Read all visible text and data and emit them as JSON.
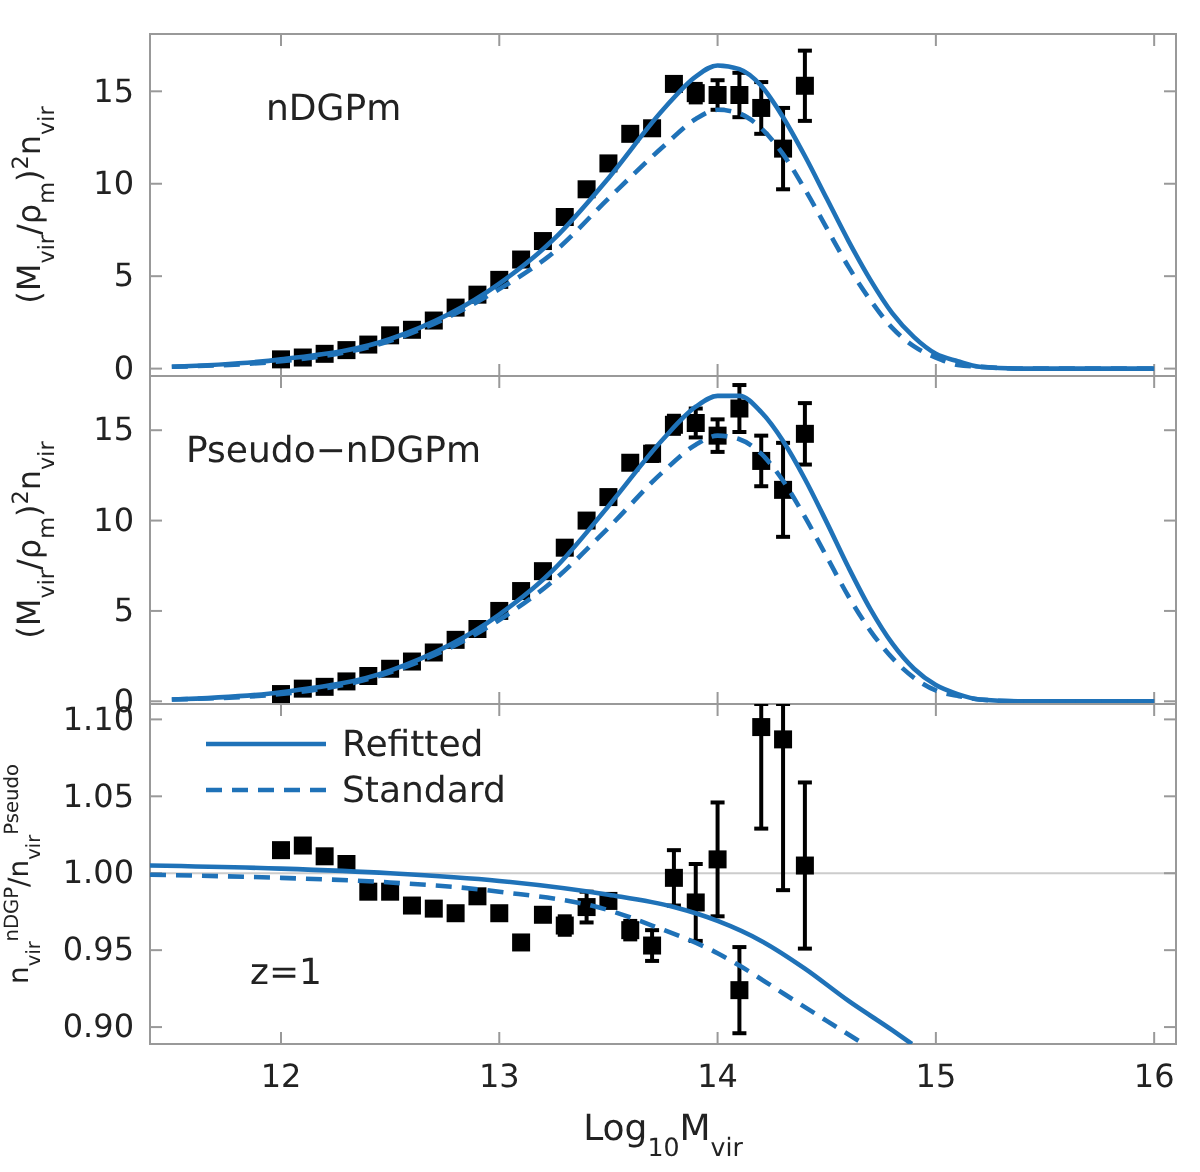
{
  "chart_data": [
    {
      "type": "scatter",
      "ylabel": "(M$_{vir}$/ρ$_{m}$)$^{2}$n$_{vir}$",
      "annotations": [
        "nDGPm"
      ],
      "xlim": [
        11.4,
        16.1
      ],
      "ylim": [
        -0.4,
        18.1
      ],
      "xticks": [
        12,
        13,
        14,
        15,
        16
      ],
      "yticks": [
        0,
        5,
        10,
        15
      ],
      "tick_labels": "y",
      "legend": false,
      "series": [
        {
          "color": "#000000",
          "marker": "square",
          "x": [
            12.0,
            12.1,
            12.2,
            12.3,
            12.4,
            12.5,
            12.6,
            12.7,
            12.8,
            12.9,
            13.0,
            13.1,
            13.2,
            13.3,
            13.4,
            13.5,
            13.6,
            13.7,
            13.8,
            13.9,
            14.0,
            14.1,
            14.2,
            14.3,
            14.4
          ],
          "values": [
            0.5,
            0.6,
            0.8,
            1.0,
            1.3,
            1.8,
            2.1,
            2.6,
            3.3,
            4.0,
            4.8,
            5.9,
            6.9,
            8.2,
            9.7,
            11.1,
            12.7,
            13.0,
            15.4,
            14.9,
            14.8,
            14.8,
            14.1,
            11.9,
            15.3
          ],
          "errors": [
            null,
            null,
            null,
            null,
            null,
            null,
            null,
            null,
            null,
            null,
            null,
            null,
            null,
            null,
            null,
            null,
            0.2,
            0.3,
            0.3,
            0.5,
            0.8,
            1.2,
            1.4,
            2.2,
            1.9
          ]
        },
        {
          "type": "line",
          "color": "#1f72b8",
          "marker": "none",
          "line_style": "solid",
          "x": [
            11.5,
            12,
            12.5,
            13,
            13.25,
            13.5,
            13.75,
            13.9,
            14.0,
            14.1,
            14.2,
            14.3,
            14.4,
            14.5,
            14.6,
            14.7,
            14.8,
            14.9,
            15.0,
            15.1,
            15.2,
            15.4,
            16
          ],
          "values": [
            0.1,
            0.5,
            1.6,
            4.6,
            7.0,
            10.3,
            14.0,
            15.8,
            16.4,
            16.2,
            15.3,
            13.6,
            11.5,
            9.2,
            6.9,
            4.8,
            3.0,
            1.7,
            0.8,
            0.4,
            0.1,
            0,
            0
          ]
        },
        {
          "type": "line",
          "color": "#1f72b8",
          "marker": "none",
          "line_style": "dashed",
          "x": [
            11.5,
            12,
            12.5,
            13,
            13.25,
            13.5,
            13.75,
            13.9,
            14.0,
            14.1,
            14.2,
            14.3,
            14.4,
            14.5,
            14.6,
            14.7,
            14.8,
            14.9,
            15.0,
            15.1,
            15.2,
            15.4,
            16
          ],
          "values": [
            0.1,
            0.4,
            1.5,
            4.3,
            6.3,
            9.2,
            12.0,
            13.5,
            14.0,
            13.8,
            13.0,
            11.6,
            9.7,
            7.6,
            5.5,
            3.7,
            2.2,
            1.2,
            0.6,
            0.2,
            0.1,
            0,
            0
          ]
        }
      ]
    },
    {
      "type": "scatter",
      "ylabel": "(M$_{vir}$/ρ$_{m}$)$^{2}$n$_{vir}$",
      "annotations": [
        "Pseudo−nDGPm"
      ],
      "xlim": [
        11.4,
        16.1
      ],
      "ylim": [
        -0.15,
        18
      ],
      "xticks": [
        12,
        13,
        14,
        15,
        16
      ],
      "yticks": [
        0,
        5,
        10,
        15
      ],
      "tick_labels": "y",
      "legend": false,
      "series": [
        {
          "color": "#000000",
          "marker": "square",
          "x": [
            12.0,
            12.1,
            12.2,
            12.3,
            12.4,
            12.5,
            12.6,
            12.7,
            12.8,
            12.9,
            13.0,
            13.1,
            13.2,
            13.3,
            13.4,
            13.5,
            13.6,
            13.7,
            13.8,
            13.9,
            14.0,
            14.1,
            14.2,
            14.3,
            14.4
          ],
          "values": [
            0.4,
            0.7,
            0.8,
            1.1,
            1.4,
            1.8,
            2.2,
            2.7,
            3.4,
            4.0,
            5.0,
            6.1,
            7.2,
            8.5,
            10.0,
            11.3,
            13.2,
            13.7,
            15.3,
            15.4,
            14.7,
            16.2,
            13.3,
            11.7,
            14.8
          ],
          "errors": [
            null,
            null,
            null,
            null,
            null,
            null,
            null,
            null,
            null,
            null,
            null,
            null,
            null,
            null,
            null,
            null,
            0.3,
            0.4,
            0.5,
            0.8,
            0.9,
            1.3,
            1.4,
            2.6,
            1.7
          ]
        },
        {
          "type": "line",
          "color": "#1f72b8",
          "marker": "none",
          "line_style": "solid",
          "x": [
            11.5,
            12,
            12.5,
            13,
            13.25,
            13.5,
            13.75,
            13.9,
            14.0,
            14.1,
            14.2,
            14.3,
            14.4,
            14.5,
            14.6,
            14.7,
            14.8,
            14.9,
            15.0,
            15.1,
            15.2,
            15.4,
            16
          ],
          "values": [
            0.1,
            0.5,
            1.7,
            4.8,
            7.3,
            10.8,
            14.5,
            16.3,
            16.9,
            16.9,
            16.0,
            14.4,
            12.3,
            9.9,
            7.4,
            5.1,
            3.2,
            1.8,
            0.9,
            0.4,
            0.1,
            0,
            0
          ]
        },
        {
          "type": "line",
          "color": "#1f72b8",
          "marker": "none",
          "line_style": "dashed",
          "x": [
            11.5,
            12,
            12.5,
            13,
            13.25,
            13.5,
            13.75,
            13.9,
            14.0,
            14.1,
            14.2,
            14.3,
            14.4,
            14.5,
            14.6,
            14.7,
            14.8,
            14.9,
            15.0,
            15.1,
            15.2,
            15.4,
            16
          ],
          "values": [
            0.1,
            0.4,
            1.6,
            4.5,
            6.7,
            9.6,
            12.7,
            14.2,
            14.7,
            14.5,
            13.7,
            12.2,
            10.2,
            8.0,
            5.8,
            3.9,
            2.4,
            1.3,
            0.6,
            0.3,
            0.1,
            0,
            0
          ]
        }
      ]
    },
    {
      "type": "scatter",
      "xlabel": "Log$_{10}$M$_{vir}$",
      "ylabel": "n$_{vir}$$^{nDGP}$/n$_{vir}$$^{Pseudo}$",
      "annotations": [
        "z=1"
      ],
      "xlim": [
        11.4,
        16.1
      ],
      "ylim": [
        0.889,
        1.11
      ],
      "xticks": [
        12,
        13,
        14,
        15,
        16
      ],
      "yticks": [
        {
          "value": 0.9,
          "label": "0.90"
        },
        {
          "value": 0.95,
          "label": "0.95"
        },
        {
          "value": 1.0,
          "label": "1.00"
        },
        {
          "value": 1.05,
          "label": "1.05"
        },
        {
          "value": 1.1,
          "label": "1.10"
        }
      ],
      "legend": "top left",
      "ref_lines": [
        {
          "axis": "y",
          "value": 1.0,
          "color": "#cccccc"
        }
      ],
      "series": [
        {
          "color": "#000000",
          "marker": "square",
          "x": [
            12.0,
            12.1,
            12.2,
            12.3,
            12.4,
            12.5,
            12.6,
            12.7,
            12.8,
            12.9,
            13.0,
            13.1,
            13.2,
            13.3,
            13.4,
            13.5,
            13.6,
            13.7,
            13.8,
            13.9,
            14.0,
            14.1,
            14.2,
            14.3,
            14.4
          ],
          "values": [
            1.015,
            1.018,
            1.011,
            1.006,
            0.988,
            0.988,
            0.979,
            0.977,
            0.974,
            0.985,
            0.974,
            0.955,
            0.973,
            0.966,
            0.978,
            0.982,
            0.963,
            0.953,
            0.997,
            0.981,
            1.009,
            0.924,
            1.095,
            1.087,
            1.005
          ],
          "errors": [
            null,
            null,
            null,
            null,
            null,
            null,
            null,
            null,
            0.004,
            0.003,
            0.003,
            0.003,
            0.003,
            0.006,
            0.01,
            0.004,
            0.006,
            0.01,
            0.018,
            0.025,
            0.037,
            0.028,
            [
              1.029,
              1.11
            ],
            [
              0.989,
              1.11
            ],
            [
              0.951,
              1.059
            ]
          ]
        },
        {
          "type": "line",
          "name": "Refitted",
          "color": "#1f72b8",
          "marker": "none",
          "line_style": "solid",
          "x": [
            11.4,
            12,
            12.5,
            13,
            13.5,
            13.8,
            14.0,
            14.2,
            14.4,
            14.6,
            14.8,
            14.89
          ],
          "values": [
            1.005,
            1.003,
            1.0,
            0.995,
            0.986,
            0.978,
            0.969,
            0.956,
            0.938,
            0.917,
            0.898,
            0.889
          ]
        },
        {
          "type": "line",
          "name": "Standard",
          "color": "#1f72b8",
          "marker": "none",
          "line_style": "dashed",
          "x": [
            11.4,
            12,
            12.5,
            13,
            13.5,
            13.7,
            14.0,
            14.1,
            14.3,
            14.5,
            14.67
          ],
          "values": [
            0.999,
            0.997,
            0.994,
            0.988,
            0.976,
            0.966,
            0.948,
            0.94,
            0.922,
            0.904,
            0.889
          ]
        }
      ]
    }
  ]
}
